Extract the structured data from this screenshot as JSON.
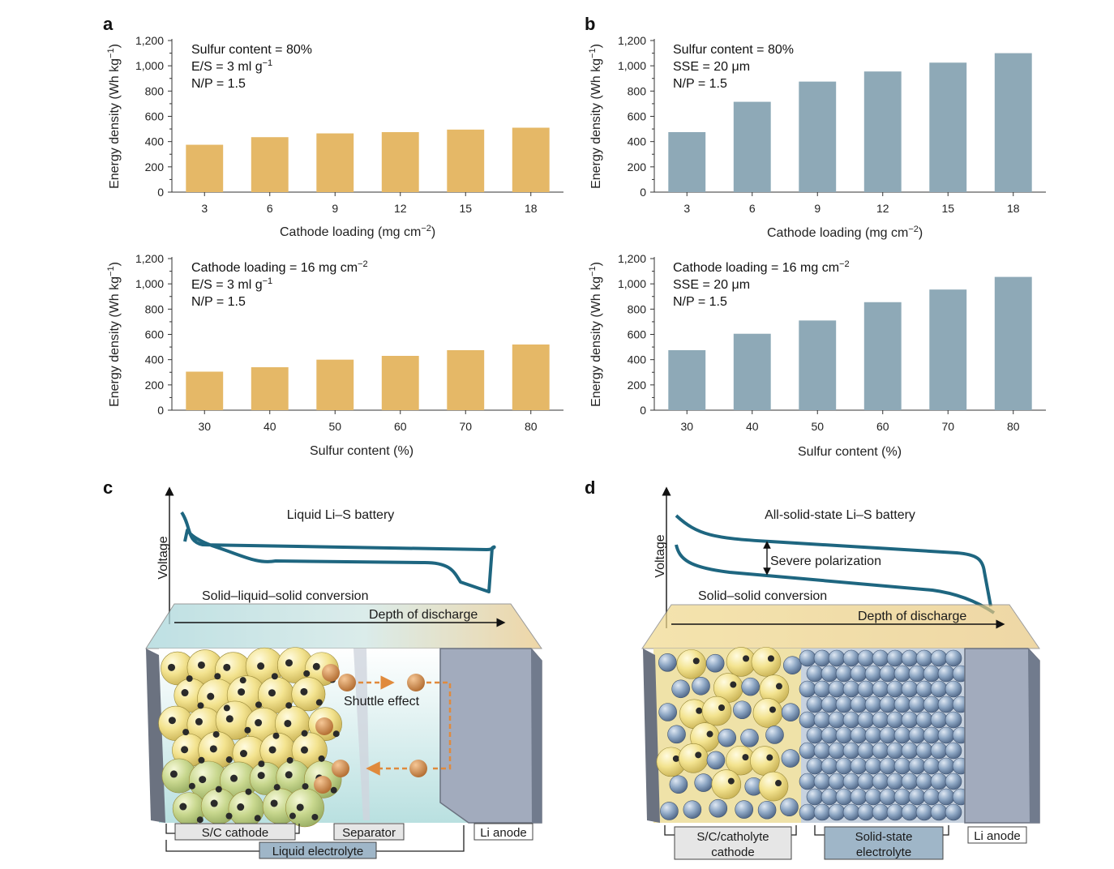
{
  "panels": {
    "a": "a",
    "b": "b",
    "c": "c",
    "d": "d"
  },
  "colors": {
    "liquid_bar": "#e5b867",
    "solid_bar": "#8ea9b7",
    "curve": "#1e6680",
    "shuttle": "#e08a3c",
    "sulfur": "#f1df8a",
    "electrolyte_particle": "#8fa6c4",
    "anode": "#a2abbd"
  },
  "chart_data": [
    {
      "id": "a-top",
      "type": "bar",
      "categories": [
        "3",
        "6",
        "9",
        "12",
        "15",
        "18"
      ],
      "values": [
        375,
        435,
        465,
        475,
        495,
        510
      ],
      "xlabel": "Cathode loading (mg cm−2)",
      "ylabel": "Energy density (Wh kg−1)",
      "ylim": [
        0,
        1200
      ],
      "yticks": [
        "0",
        "200",
        "400",
        "600",
        "800",
        "1,000",
        "1,200"
      ],
      "annotations": [
        "Sulfur content = 80%",
        "E/S = 3 ml g−1",
        "N/P = 1.5"
      ]
    },
    {
      "id": "b-top",
      "type": "bar",
      "categories": [
        "3",
        "6",
        "9",
        "12",
        "15",
        "18"
      ],
      "values": [
        475,
        715,
        875,
        955,
        1025,
        1100
      ],
      "xlabel": "Cathode loading (mg cm−2)",
      "ylabel": "Energy density (Wh kg−1)",
      "ylim": [
        0,
        1200
      ],
      "yticks": [
        "0",
        "200",
        "400",
        "600",
        "800",
        "1,000",
        "1,200"
      ],
      "annotations": [
        "Sulfur content = 80%",
        "SSE = 20 μm",
        "N/P = 1.5"
      ]
    },
    {
      "id": "a-bottom",
      "type": "bar",
      "categories": [
        "30",
        "40",
        "50",
        "60",
        "70",
        "80"
      ],
      "values": [
        305,
        340,
        400,
        430,
        475,
        520
      ],
      "xlabel": "Sulfur content (%)",
      "ylabel": "Energy density (Wh kg−1)",
      "ylim": [
        0,
        1200
      ],
      "yticks": [
        "0",
        "200",
        "400",
        "600",
        "800",
        "1,000",
        "1,200"
      ],
      "annotations": [
        "Cathode loading = 16 mg cm−2",
        "E/S = 3 ml g−1",
        "N/P = 1.5"
      ]
    },
    {
      "id": "b-bottom",
      "type": "bar",
      "categories": [
        "30",
        "40",
        "50",
        "60",
        "70",
        "80"
      ],
      "values": [
        475,
        605,
        710,
        855,
        955,
        1055
      ],
      "xlabel": "Sulfur content (%)",
      "ylabel": "Energy density (Wh kg−1)",
      "ylim": [
        0,
        1200
      ],
      "yticks": [
        "0",
        "200",
        "400",
        "600",
        "800",
        "1,000",
        "1,200"
      ],
      "annotations": [
        "Cathode loading = 16 mg cm−2",
        "SSE = 20 μm",
        "N/P = 1.5"
      ]
    }
  ],
  "diagram_c": {
    "title": "Liquid Li–S battery",
    "y_axis": "Voltage",
    "conversion": "Solid–liquid–solid conversion",
    "x_axis": "Depth of discharge",
    "shuttle": "Shuttle effect",
    "labels": {
      "cathode": "S/C cathode",
      "separator": "Separator",
      "anode": "Li anode",
      "electrolyte": "Liquid electrolyte"
    }
  },
  "diagram_d": {
    "title": "All-solid-state Li–S battery",
    "y_axis": "Voltage",
    "polarization": "Severe polarization",
    "conversion": "Solid–solid conversion",
    "x_axis": "Depth of discharge",
    "labels": {
      "cathode_line1": "S/C/catholyte",
      "cathode_line2": "cathode",
      "electrolyte_line1": "Solid-state",
      "electrolyte_line2": "electrolyte",
      "anode": "Li anode"
    }
  }
}
